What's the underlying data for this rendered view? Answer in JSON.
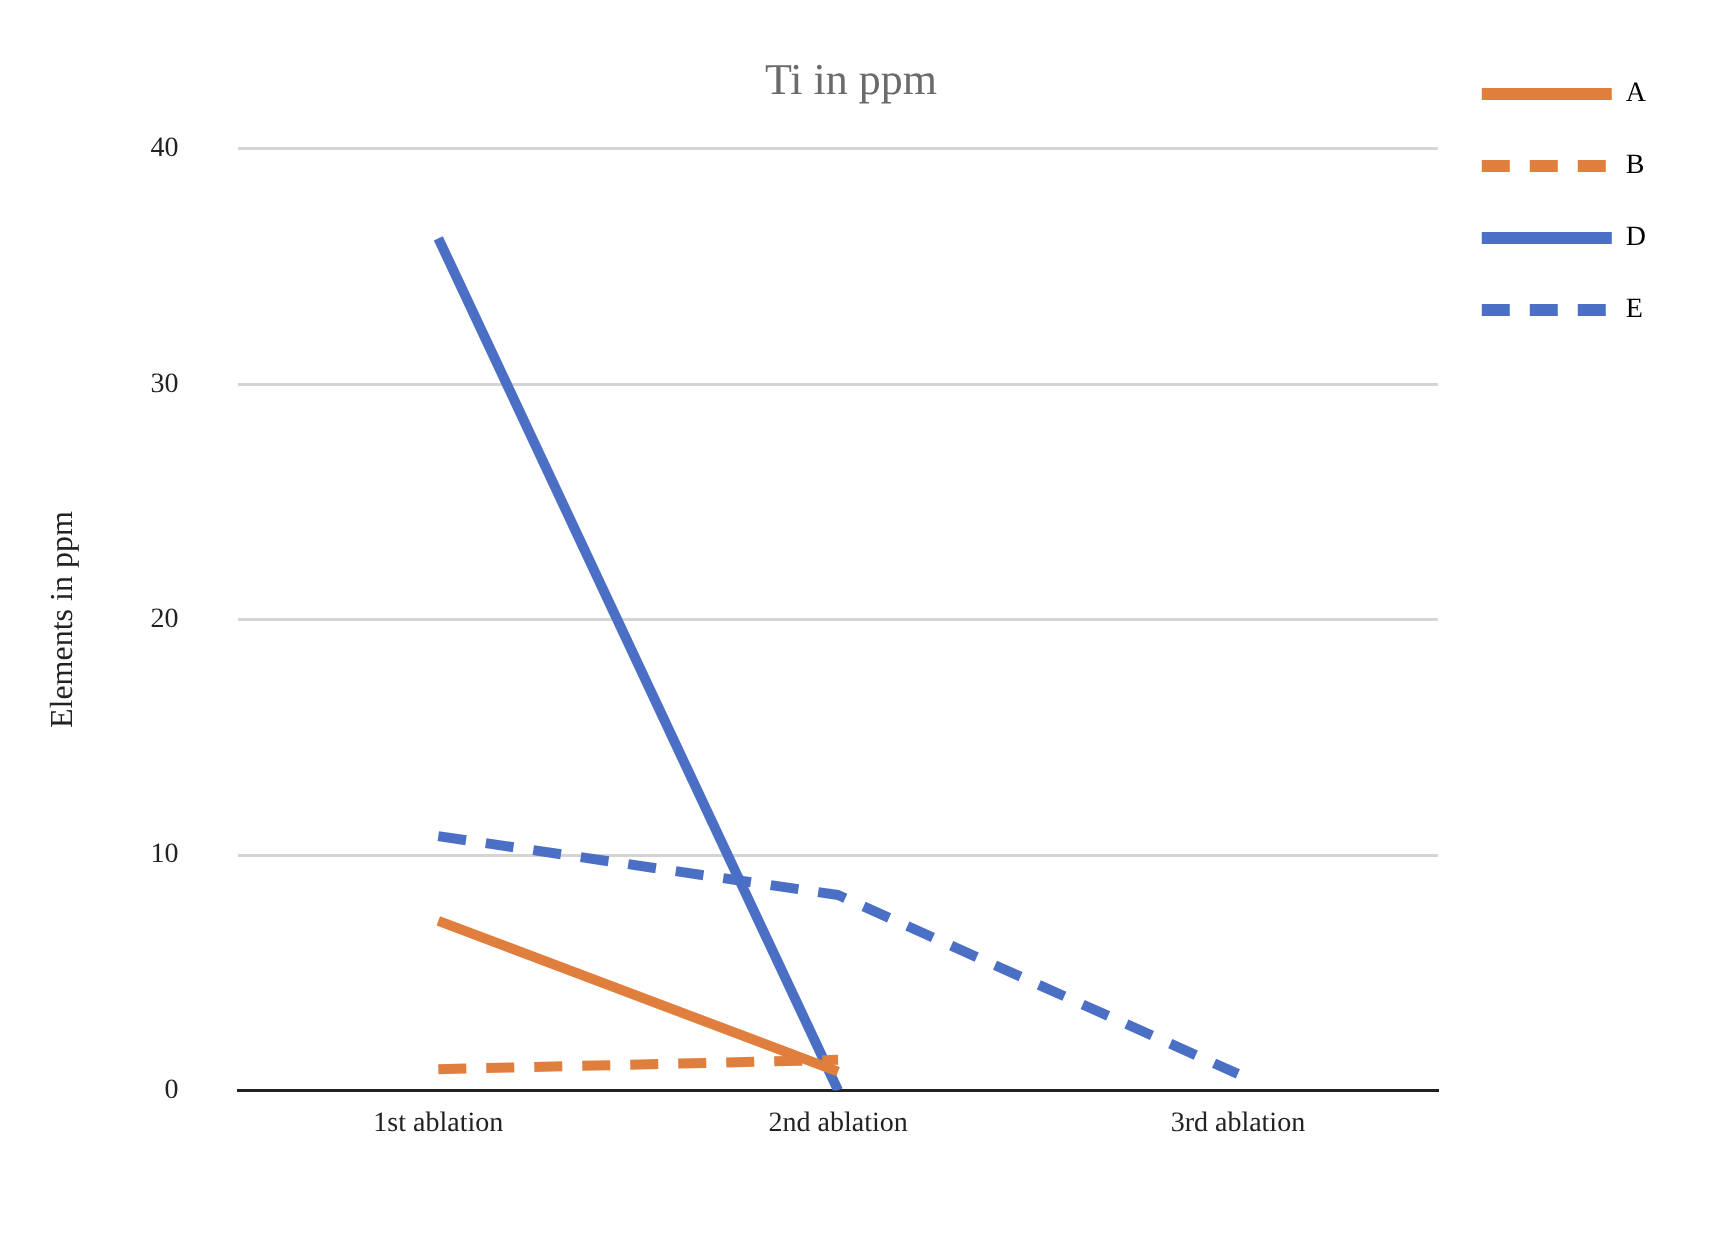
{
  "chart_data": {
    "type": "line",
    "title": "Ti in ppm",
    "ylabel": "Elements in ppm",
    "categories": [
      "1st ablation",
      "2nd ablation",
      "3rd ablation"
    ],
    "series": [
      {
        "name": "A",
        "color": "#e07f3d",
        "line_style": "solid",
        "values": [
          7.2,
          0.8,
          null
        ]
      },
      {
        "name": "B",
        "color": "#e07f3d",
        "line_style": "dashed",
        "values": [
          0.9,
          1.3,
          null
        ]
      },
      {
        "name": "D",
        "color": "#4a6fc4",
        "line_style": "solid",
        "values": [
          36.2,
          0,
          null
        ]
      },
      {
        "name": "E",
        "color": "#4a6fc4",
        "line_style": "dashed",
        "values": [
          10.8,
          8.3,
          0.7
        ]
      }
    ],
    "ylim": [
      0,
      40
    ],
    "yticks": [
      0,
      10,
      20,
      30,
      40
    ],
    "grid": "y",
    "legend": "right",
    "marker": "none"
  }
}
